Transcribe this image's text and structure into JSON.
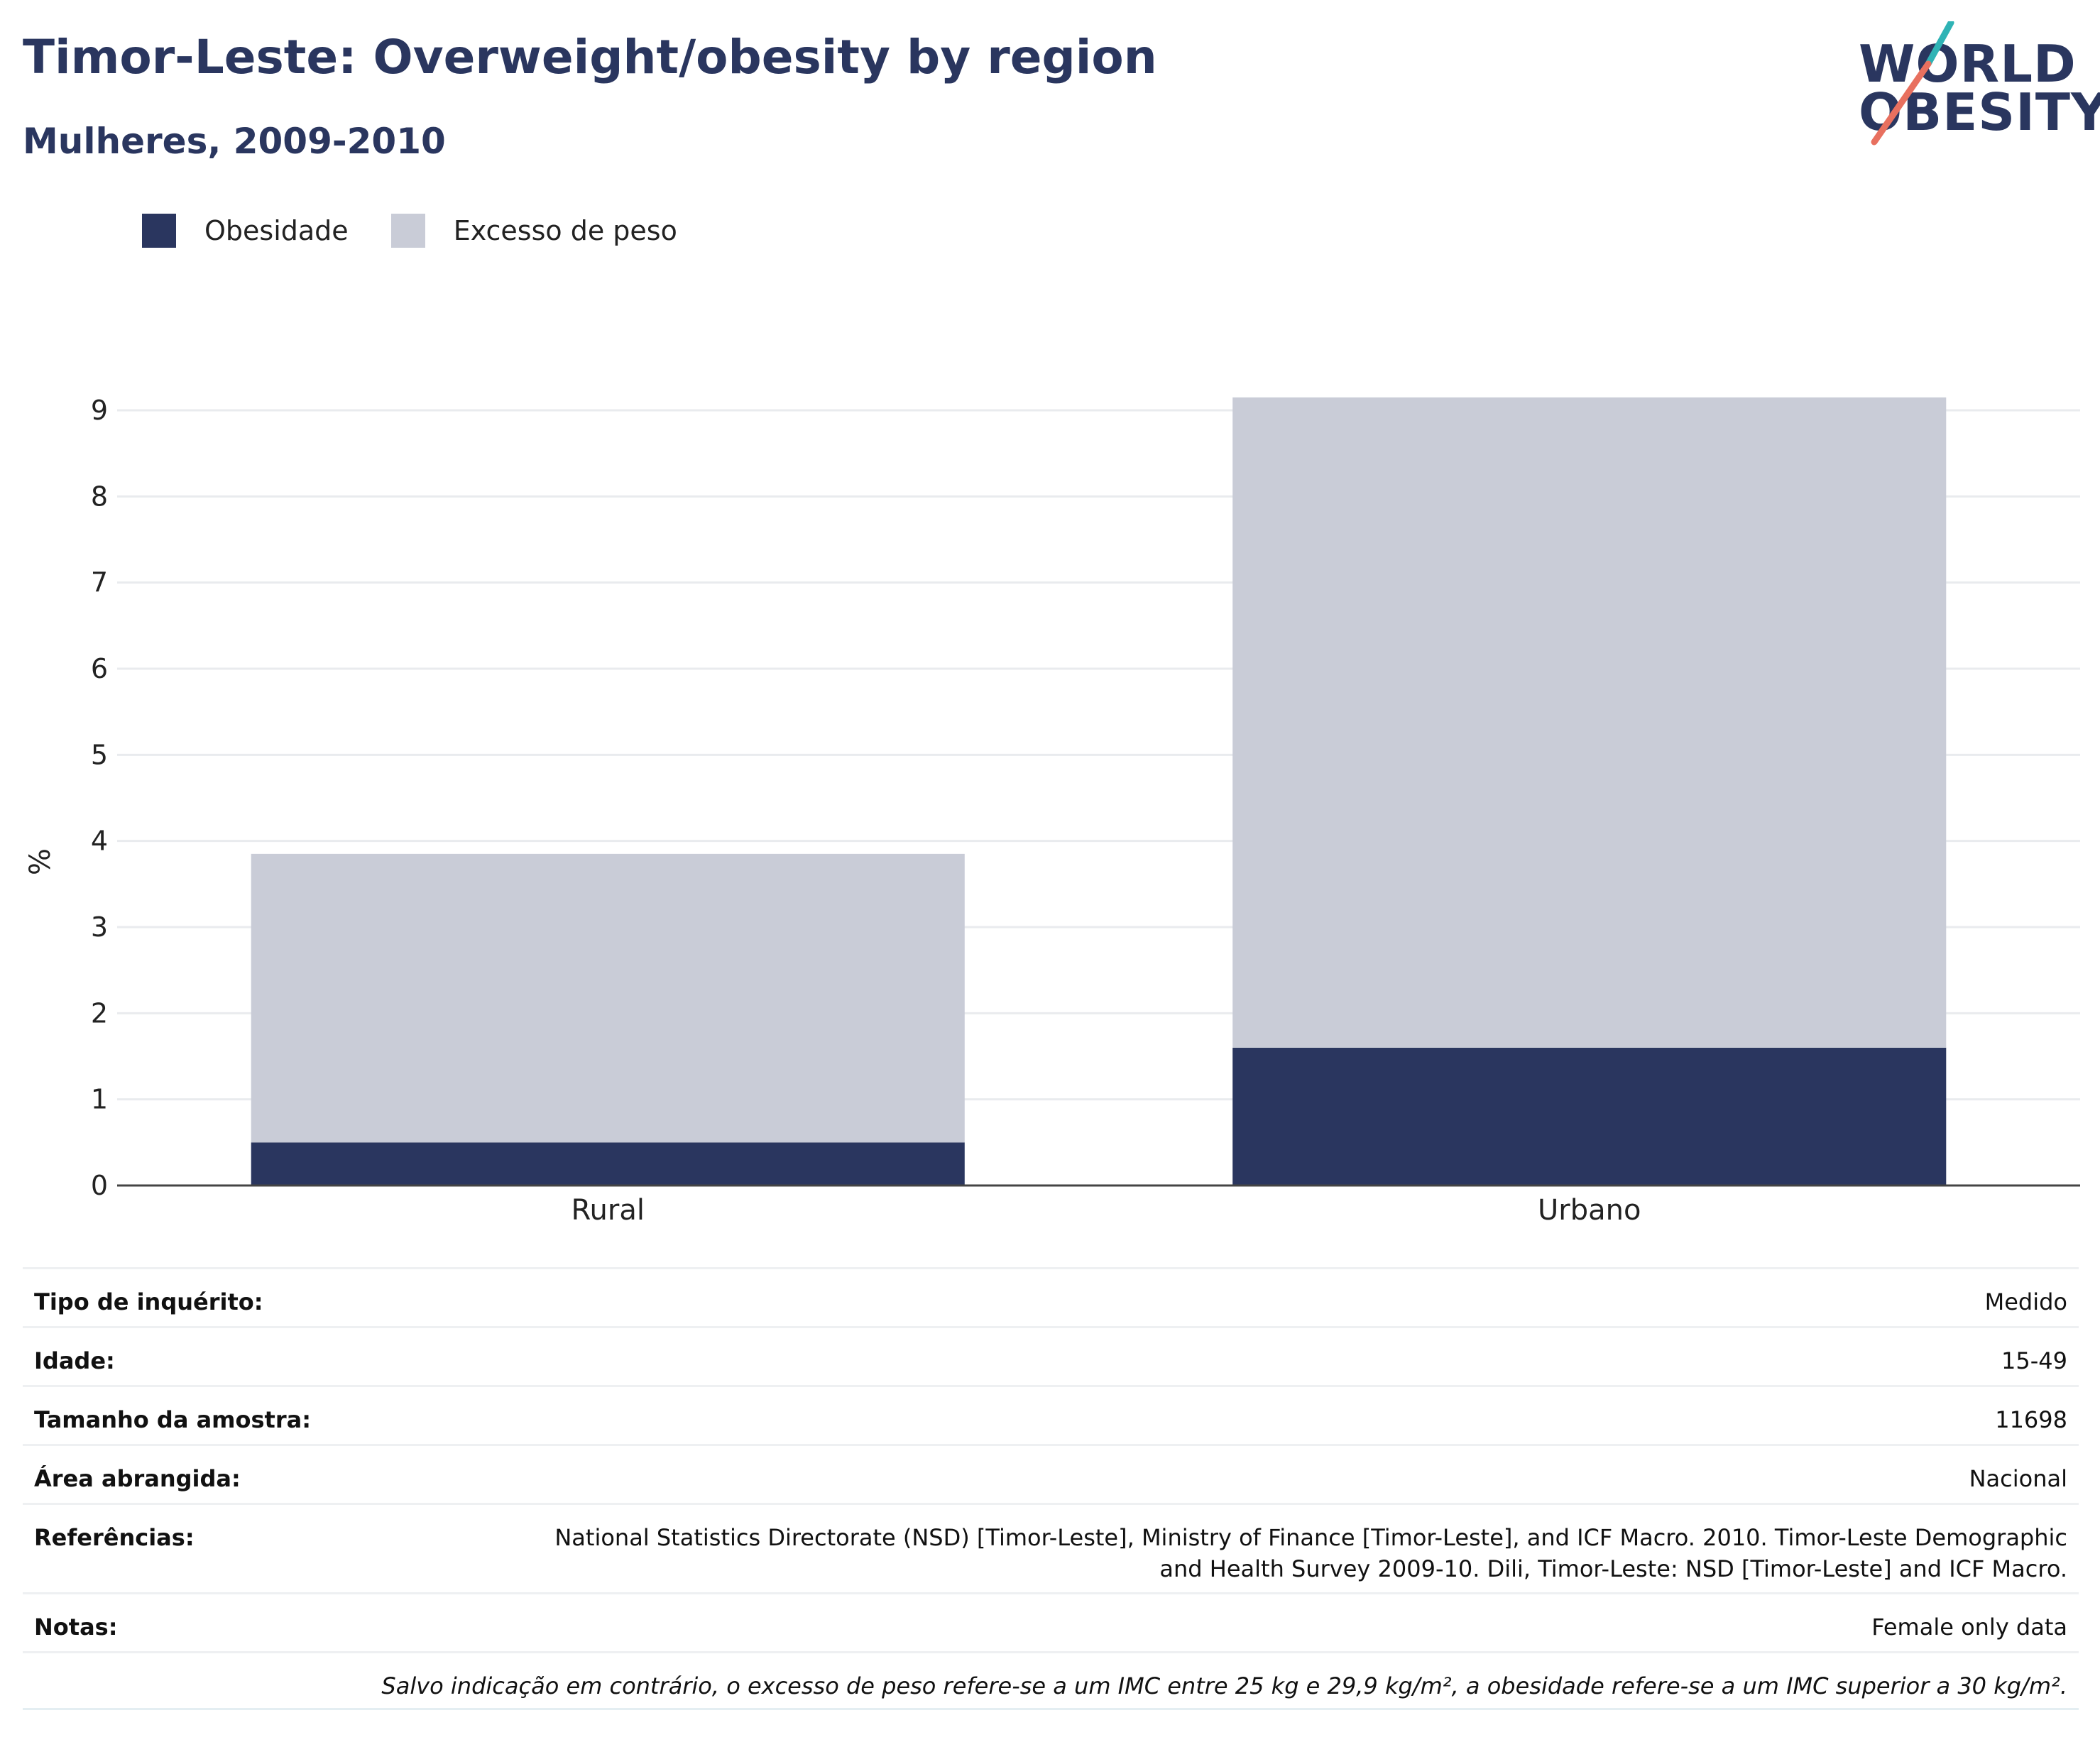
{
  "header": {
    "title": "Timor-Leste: Overweight/obesity by region",
    "subtitle": "Mulheres, 2009-2010"
  },
  "logo": {
    "line1": "WORLD",
    "line2": "OBESITY"
  },
  "legend": [
    {
      "label": "Obesidade",
      "color": "#2a365f"
    },
    {
      "label": "Excesso de peso",
      "color": "#c9ccd7"
    }
  ],
  "chart_data": {
    "type": "bar",
    "stacked": true,
    "categories": [
      "Rural",
      "Urbano"
    ],
    "series": [
      {
        "name": "Obesidade",
        "values": [
          0.5,
          1.6
        ],
        "color": "#2a365f"
      },
      {
        "name": "Excesso de peso",
        "values": [
          3.35,
          7.55
        ],
        "color": "#c9ccd7"
      }
    ],
    "ylabel": "%",
    "ylim": [
      0,
      9
    ],
    "yticks": [
      "0",
      "1",
      "2",
      "3",
      "4",
      "5",
      "6",
      "7",
      "8",
      "9"
    ],
    "grid": true,
    "legend_position": "top-left"
  },
  "info": {
    "survey_type": {
      "label": "Tipo de inquérito:",
      "value": "Medido"
    },
    "age": {
      "label": "Idade:",
      "value": "15-49"
    },
    "sample_size": {
      "label": "Tamanho da amostra:",
      "value": "11698"
    },
    "area": {
      "label": "Área abrangida:",
      "value": "Nacional"
    },
    "references": {
      "label": "Referências:",
      "value": "National Statistics Directorate (NSD) [Timor-Leste], Ministry of Finance [Timor-Leste], and ICF Macro. 2010. Timor-Leste Demographic and Health Survey 2009-10. Dili, Timor-Leste: NSD [Timor-Leste] and ICF Macro."
    },
    "notes": {
      "label": "Notas:",
      "value": "Female only data"
    },
    "footnote": "Salvo indicação em contrário, o excesso de peso refere-se a um IMC entre 25 kg e 29,9 kg/m², a obesidade refere-se a um IMC superior a 30 kg/m²."
  }
}
